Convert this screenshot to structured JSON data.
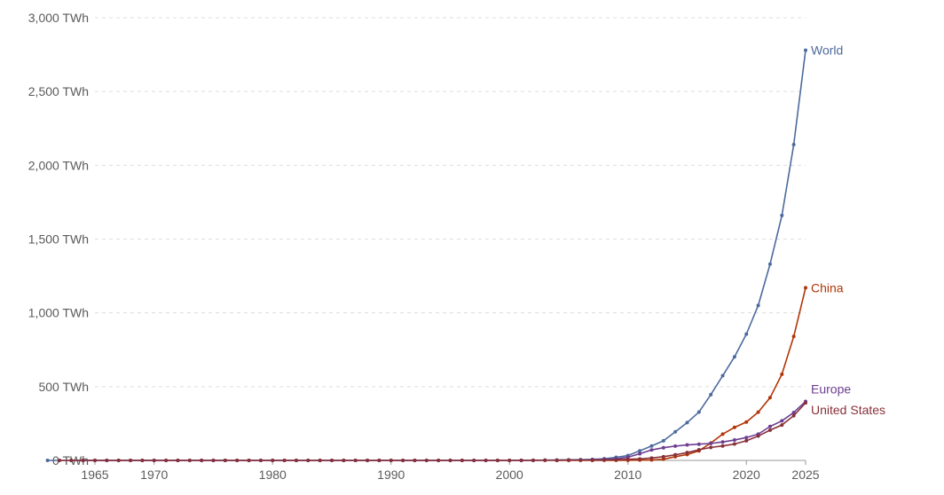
{
  "chart_data": {
    "type": "line",
    "title": "",
    "xlabel": "",
    "ylabel": "",
    "unit": "TWh",
    "xlim": [
      1965,
      2025
    ],
    "ylim": [
      0,
      3000
    ],
    "x_ticks": [
      {
        "value": 1965,
        "label": "1965"
      },
      {
        "value": 1970,
        "label": "1970"
      },
      {
        "value": 1980,
        "label": "1980"
      },
      {
        "value": 1990,
        "label": "1990"
      },
      {
        "value": 2000,
        "label": "2000"
      },
      {
        "value": 2010,
        "label": "2010"
      },
      {
        "value": 2020,
        "label": "2020"
      },
      {
        "value": 2025,
        "label": "2025"
      }
    ],
    "y_ticks": [
      {
        "value": 0,
        "label": "0 TWh"
      },
      {
        "value": 500,
        "label": "500 TWh"
      },
      {
        "value": 1000,
        "label": "1,000 TWh"
      },
      {
        "value": 1500,
        "label": "1,500 TWh"
      },
      {
        "value": 2000,
        "label": "2,000 TWh"
      },
      {
        "value": 2500,
        "label": "2,500 TWh"
      },
      {
        "value": 3000,
        "label": "3,000 TWh"
      }
    ],
    "grid": true,
    "legend": "labels at line ends",
    "start_year": 1965,
    "series": [
      {
        "name": "World",
        "color": "#4c6a9c",
        "values": [
          0,
          0,
          0,
          0,
          0,
          0,
          0,
          0,
          0,
          0,
          0,
          0,
          0,
          0,
          0,
          0,
          0,
          0,
          0,
          0,
          0,
          0,
          0,
          0,
          0,
          0,
          0,
          0,
          0,
          0,
          0,
          0,
          0,
          0,
          0,
          0,
          0,
          0,
          0,
          0,
          1,
          1,
          2,
          3,
          4,
          5,
          7,
          11,
          21,
          33,
          65,
          98,
          133,
          194,
          256,
          328,
          446,
          574,
          702,
          856,
          1050,
          1330,
          1660,
          2140,
          2780
        ]
      },
      {
        "name": "China",
        "color": "#b13507",
        "values": [
          null,
          null,
          null,
          null,
          null,
          null,
          null,
          null,
          null,
          null,
          null,
          null,
          null,
          null,
          null,
          null,
          null,
          null,
          null,
          null,
          null,
          null,
          null,
          null,
          null,
          null,
          null,
          null,
          null,
          null,
          null,
          null,
          null,
          null,
          null,
          null,
          null,
          null,
          null,
          null,
          null,
          null,
          0,
          0,
          0,
          0.2,
          0.4,
          0.6,
          1,
          2,
          3,
          8,
          25,
          40,
          65,
          118,
          178,
          224,
          260,
          327,
          425,
          584,
          840,
          1170
        ]
      },
      {
        "name": "Europe",
        "color": "#6d3e91",
        "values": [
          0,
          0,
          0,
          0,
          0,
          0,
          0,
          0,
          0,
          0,
          0,
          0,
          0,
          0,
          0,
          0,
          0,
          0,
          0,
          0,
          0,
          0,
          0,
          0,
          0,
          0,
          0,
          0,
          0,
          0,
          0,
          0,
          0,
          0,
          0,
          0,
          0,
          0,
          0,
          0,
          1,
          1,
          2,
          3,
          5,
          7,
          10,
          22,
          45,
          71,
          86,
          97,
          105,
          110,
          115,
          125,
          138,
          155,
          178,
          230,
          268,
          325,
          400
        ]
      },
      {
        "name": "United States",
        "color": "#883039",
        "values": [
          0,
          0,
          0,
          0,
          0,
          0,
          0,
          0,
          0,
          0,
          0,
          0,
          0,
          0,
          0,
          0,
          0,
          0,
          0,
          0,
          0,
          0,
          0,
          0,
          0,
          0,
          0,
          0,
          0,
          0,
          0,
          0,
          0,
          0,
          0,
          0,
          0,
          0,
          0,
          0,
          1,
          1,
          1,
          2,
          2,
          2,
          3,
          4,
          8,
          10,
          16,
          25,
          38,
          53,
          72,
          88,
          98,
          111,
          133,
          165,
          205,
          240,
          303,
          390
        ]
      }
    ]
  }
}
